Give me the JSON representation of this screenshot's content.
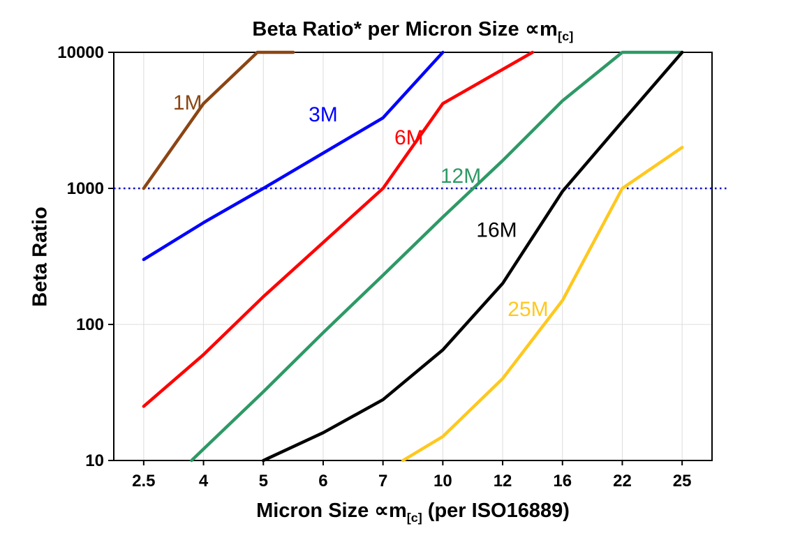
{
  "chart_data": {
    "type": "line",
    "title": {
      "pre": "Beta Ratio* per Micron Size ∝m",
      "subscript": "[c]"
    },
    "xlabel": {
      "pre": "Micron Size ∝m",
      "subscript": "[c]",
      "post": " (per ISO16889)"
    },
    "ylabel": "Beta Ratio",
    "x_categories": [
      "2.5",
      "4",
      "5",
      "6",
      "7",
      "10",
      "12",
      "16",
      "22",
      "25"
    ],
    "y_ticks": [
      "10",
      "100",
      "1000",
      "10000"
    ],
    "y_scale": "log",
    "ylim": [
      10,
      10000
    ],
    "grid": true,
    "legend": "inline-labels",
    "reference_line": {
      "value": 1000,
      "color": "#0000CC",
      "style": "dotted"
    },
    "series": [
      {
        "name": "1M",
        "color": "#8B4513",
        "label_pos": [
          3.6,
          3800
        ],
        "points": [
          [
            2.5,
            1000
          ],
          [
            4,
            4200
          ],
          [
            4.9,
            10000
          ],
          [
            5.5,
            10000
          ]
        ]
      },
      {
        "name": "3M",
        "color": "#0000FF",
        "label_pos": [
          6.0,
          3100
        ],
        "points": [
          [
            2.5,
            300
          ],
          [
            4,
            560
          ],
          [
            5,
            1000
          ],
          [
            7,
            3300
          ],
          [
            10,
            10000
          ]
        ]
      },
      {
        "name": "6M",
        "color": "#FF0000",
        "label_pos": [
          8.3,
          2100
        ],
        "points": [
          [
            2.5,
            25
          ],
          [
            4,
            60
          ],
          [
            5,
            160
          ],
          [
            6,
            400
          ],
          [
            7,
            1000
          ],
          [
            10,
            4200
          ],
          [
            14,
            10000
          ]
        ]
      },
      {
        "name": "12M",
        "color": "#2E9966",
        "label_pos": [
          10.6,
          1100
        ],
        "points": [
          [
            3.7,
            10
          ],
          [
            5,
            32
          ],
          [
            6,
            87
          ],
          [
            7,
            230
          ],
          [
            10,
            615
          ],
          [
            12,
            1600
          ],
          [
            16,
            4400
          ],
          [
            22,
            10000
          ],
          [
            25,
            10000
          ]
        ]
      },
      {
        "name": "16M",
        "color": "#000000",
        "label_pos": [
          11.8,
          440
        ],
        "points": [
          [
            5,
            10
          ],
          [
            6,
            16
          ],
          [
            7,
            28
          ],
          [
            10,
            65
          ],
          [
            12,
            200
          ],
          [
            16,
            950
          ],
          [
            22,
            3100
          ],
          [
            25,
            10000
          ]
        ]
      },
      {
        "name": "25M",
        "color": "#FFC81E",
        "label_pos": [
          13.7,
          115
        ],
        "points": [
          [
            8,
            10
          ],
          [
            10,
            15
          ],
          [
            12,
            40
          ],
          [
            16,
            150
          ],
          [
            22,
            1000
          ],
          [
            25,
            2000
          ]
        ]
      }
    ]
  }
}
